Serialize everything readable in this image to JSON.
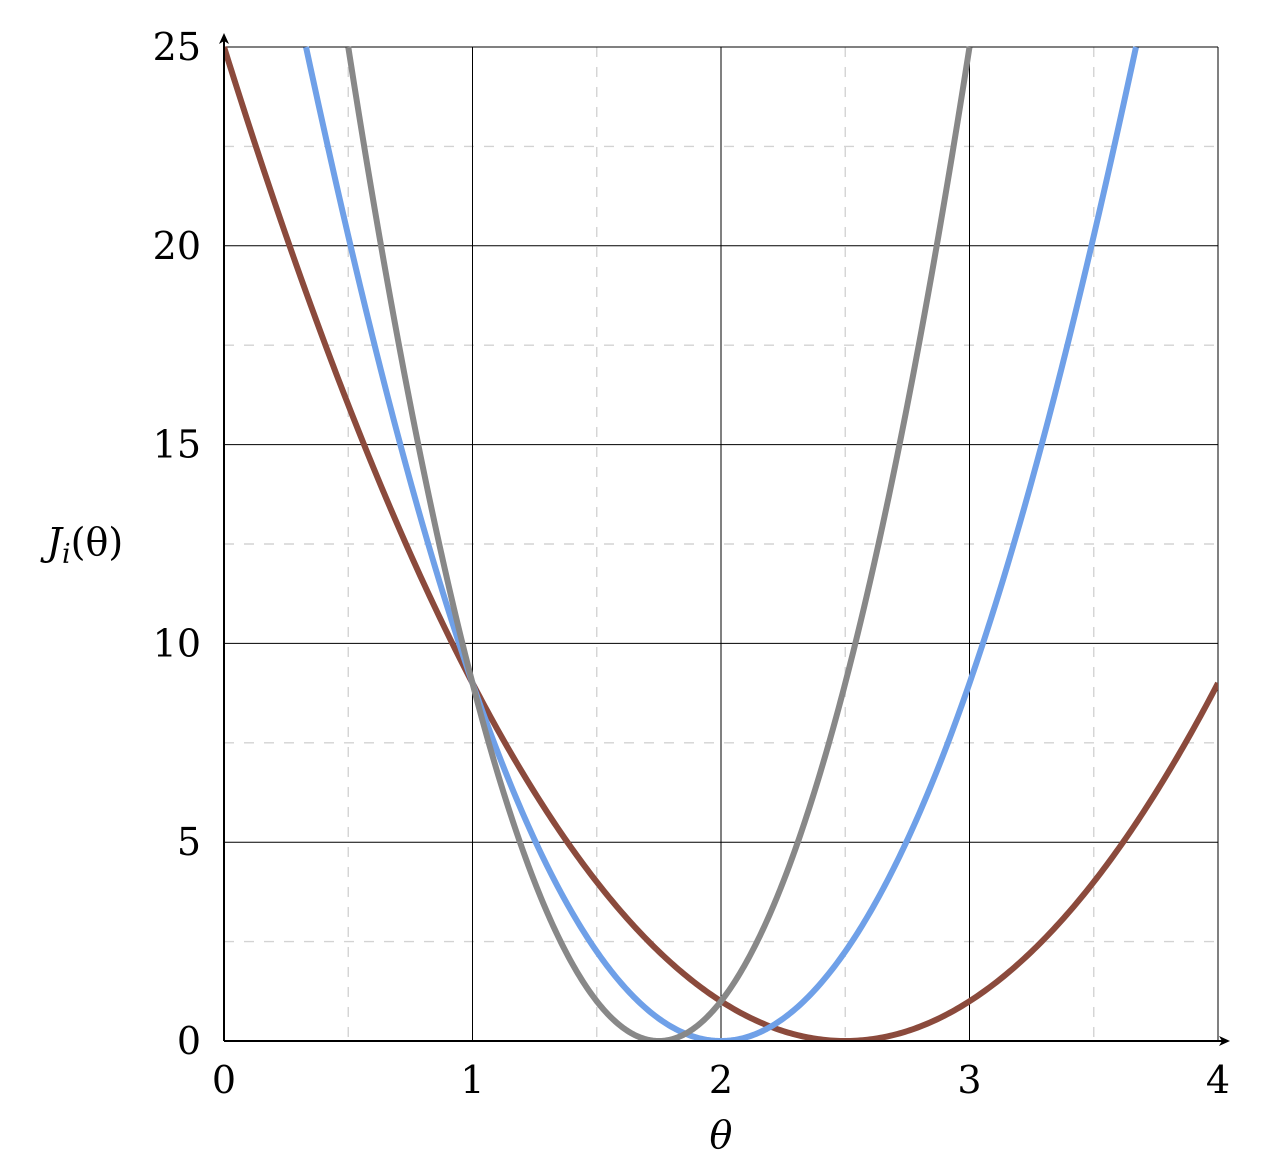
{
  "chart_data": {
    "type": "line",
    "title": "",
    "xlabel": "θ",
    "ylabel": "J_i(θ)",
    "ylabel_parts": {
      "main": "J",
      "sub": "i",
      "rest": "(θ)"
    },
    "xlim": [
      0,
      4
    ],
    "ylim": [
      0,
      25
    ],
    "grid": "major solid, minor dashed",
    "x_ticks": [
      0,
      1,
      2,
      3,
      4
    ],
    "x_tick_labels": [
      "0",
      "1",
      "2",
      "3",
      "4"
    ],
    "y_ticks": [
      0,
      5,
      10,
      15,
      20,
      25
    ],
    "y_tick_labels": [
      "0",
      "5",
      "10",
      "15",
      "20",
      "25"
    ],
    "x_minor_ticks": [
      0.5,
      1.5,
      2.5,
      3.5
    ],
    "y_minor_ticks": [
      2.5,
      7.5,
      12.5,
      17.5,
      22.5
    ],
    "series": [
      {
        "color": "#8b4a3c",
        "x": [
          0,
          0.5,
          1,
          1.5,
          2,
          2.5,
          3,
          3.5,
          4
        ],
        "y": [
          25,
          16,
          9,
          4,
          1,
          0,
          1,
          4,
          9
        ]
      },
      {
        "color": "#6fa0e8",
        "x": [
          0.33,
          0.5,
          1,
          1.5,
          2,
          2.5,
          3,
          3.5,
          3.67
        ],
        "y": [
          25,
          20.25,
          9,
          2.25,
          0,
          2.25,
          9,
          20.25,
          25
        ]
      },
      {
        "color": "#888888",
        "x": [
          0.5,
          1,
          1.25,
          1.5,
          1.75,
          2,
          2.25,
          2.5,
          3
        ],
        "y": [
          25,
          9,
          4,
          1,
          0,
          1,
          4,
          9,
          25
        ]
      }
    ]
  }
}
